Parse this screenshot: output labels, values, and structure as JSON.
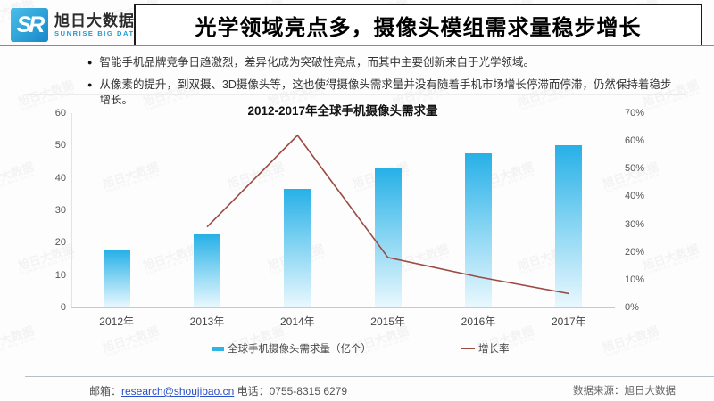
{
  "header": {
    "logo_monogram": "SR",
    "logo_name_cn": "旭日大数据",
    "logo_name_en": "SUNRISE BIG DATA",
    "title": "光学领域亮点多，摄像头模组需求量稳步增长"
  },
  "bullets": [
    "智能手机品牌竞争日趋激烈，差异化成为突破性亮点，而其中主要创新来自于光学领域。",
    "从像素的提升，到双摄、3D摄像头等，这也使得摄像头需求量并没有随着手机市场增长停滞而停滞，仍然保持着稳步增长。"
  ],
  "chart_data": {
    "type": "bar+line",
    "title": "2012-2017年全球手机摄像头需求量",
    "categories": [
      "2012年",
      "2013年",
      "2014年",
      "2015年",
      "2016年",
      "2017年"
    ],
    "series": [
      {
        "name": "全球手机摄像头需求量（亿个）",
        "type": "bar",
        "axis": "left",
        "values": [
          17.5,
          22.5,
          36.5,
          43,
          47.5,
          50
        ]
      },
      {
        "name": "增长率",
        "type": "line",
        "axis": "right",
        "values": [
          null,
          29,
          62,
          18,
          11,
          5
        ]
      }
    ],
    "left_axis": {
      "min": 0,
      "max": 60,
      "ticks": [
        0,
        10,
        20,
        30,
        40,
        50,
        60
      ]
    },
    "right_axis": {
      "min": 0,
      "max": 70,
      "ticks": [
        "0%",
        "10%",
        "20%",
        "30%",
        "40%",
        "50%",
        "60%",
        "70%"
      ]
    },
    "legend_position": "bottom",
    "grid": false,
    "colors": {
      "bar_top": "#27b0e7",
      "bar_mid": "#7fd2f2",
      "bar_bottom": "#eaf8fe",
      "line": "#9c4a42",
      "legend_bar_swatch": "#2fb4e8"
    }
  },
  "footer": {
    "email_label": "邮箱：",
    "email": "research@shoujibao.cn",
    "phone": "  电话：0755-8315 6279",
    "source": "数据来源：旭日大数据"
  },
  "watermark": {
    "line1": "旭日大数据",
    "line2": "SUNRISE BIG DATA"
  }
}
